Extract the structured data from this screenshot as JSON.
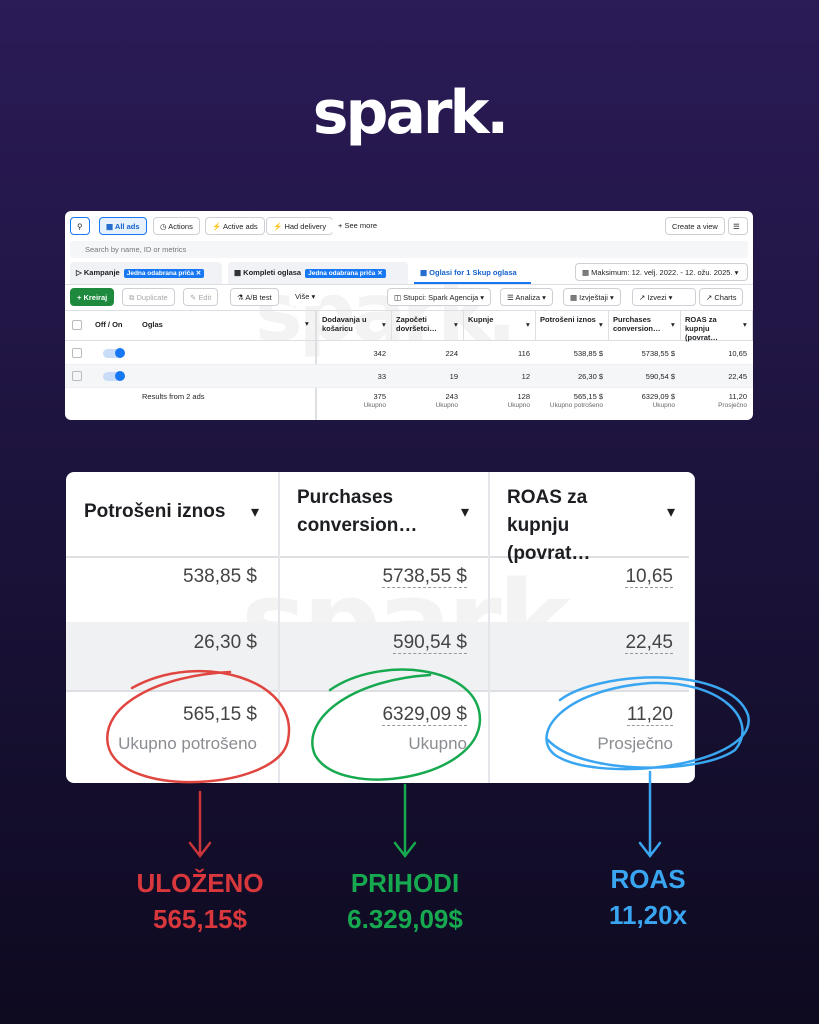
{
  "logo": "spark.",
  "toolbar": {
    "all_ads": "All ads",
    "actions": "Actions",
    "active_ads": "Active ads",
    "had_delivery": "Had delivery",
    "see_more": "See more",
    "create_view": "Create a view"
  },
  "search_placeholder": "Search by name, ID or metrics",
  "tabs": [
    {
      "label": "Kampanje",
      "chip": "Jedna odabrana priča"
    },
    {
      "label": "Kompleti oglasa",
      "chip": "Jedna odabrana priča"
    },
    {
      "label": "Oglasi for 1 Skup oglasa"
    }
  ],
  "date_range": "Maksimum: 12. velj. 2022. - 12. ožu. 2025.",
  "actions": {
    "create": "Kreiraj",
    "duplicate": "Duplicate",
    "edit": "Edit",
    "ab_test": "A/B test",
    "more": "Više",
    "columns": "Stupci: Spark Agencija",
    "analysis": "Analiza",
    "reports": "Izvještaji",
    "export": "Izvezi",
    "charts": "Charts"
  },
  "table": {
    "headers": [
      "Off / On",
      "Oglas",
      "Dodavanja u košaricu",
      "Započeti dovršetci…",
      "Kupnje",
      "Potrošeni iznos",
      "Purchases conversion…",
      "ROAS za kupnju (povrat…"
    ],
    "rows": [
      [
        342,
        224,
        116,
        "538,85 $",
        "5738,55 $",
        "10,65"
      ],
      [
        33,
        19,
        12,
        "26,30 $",
        "590,54 $",
        "22,45"
      ]
    ],
    "summary_label": "Results from 2 ads",
    "totals": [
      {
        "value": 375,
        "label": "Ukupno"
      },
      {
        "value": 243,
        "label": "Ukupno"
      },
      {
        "value": 128,
        "label": "Ukupno"
      },
      {
        "value": "565,15 $",
        "label": "Ukupno potrošeno"
      },
      {
        "value": "6329,09 $",
        "label": "Ukupno"
      },
      {
        "value": "11,20",
        "label": "Prosječno"
      }
    ]
  },
  "annotations": [
    {
      "title": "ULOŽENO",
      "value": "565,15$",
      "color": "#d8383c"
    },
    {
      "title": "PRIHODI",
      "value": "6.329,09$",
      "color": "#17a94f"
    },
    {
      "title": "ROAS",
      "value": "11,20x",
      "color": "#3aa6f2"
    }
  ]
}
